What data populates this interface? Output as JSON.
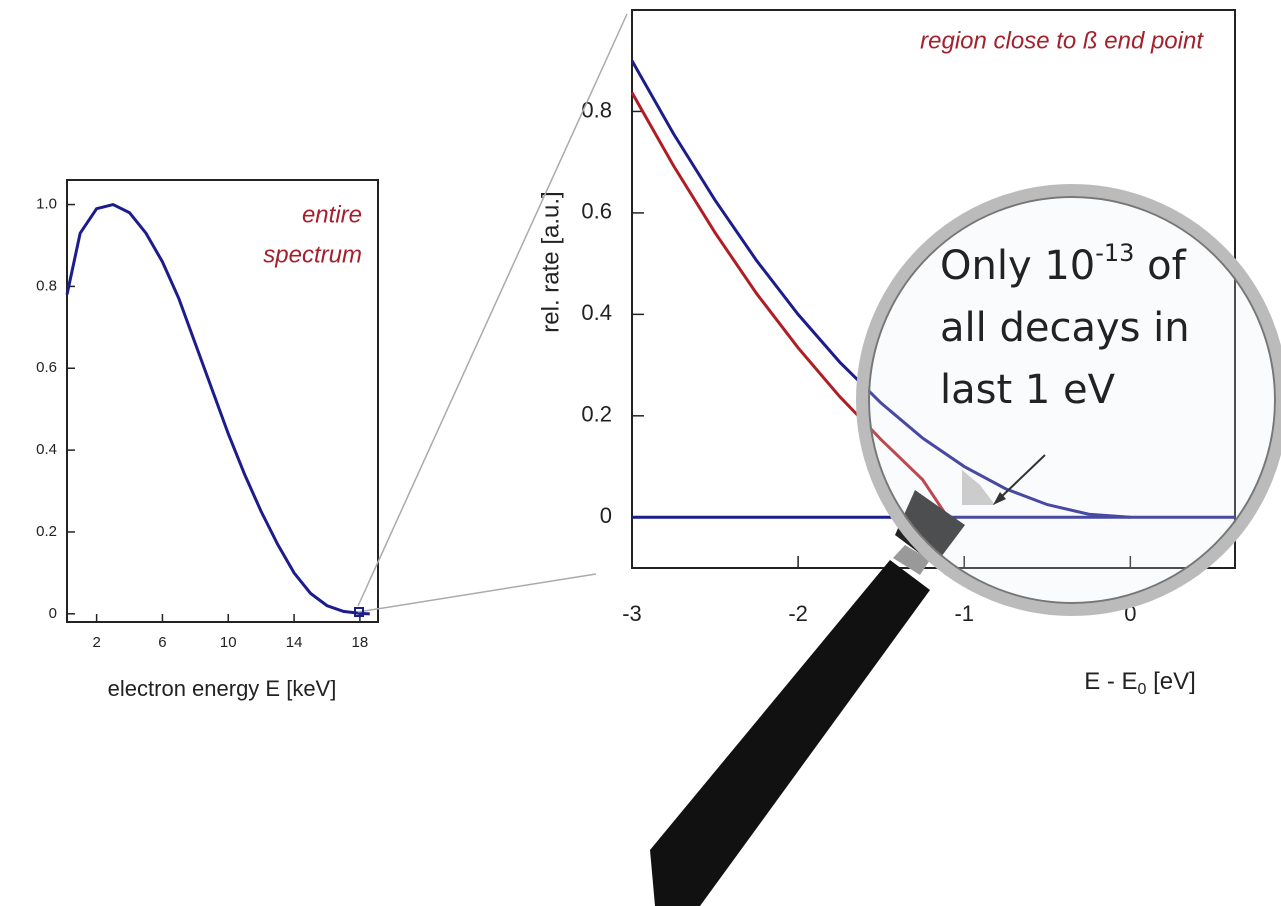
{
  "chart_data": [
    {
      "type": "line",
      "title_lines": [
        "entire",
        "spectrum"
      ],
      "xlabel": "electron energy E [keV]",
      "x": [
        0.2,
        1,
        2,
        3,
        4,
        5,
        6,
        7,
        8,
        9,
        10,
        11,
        12,
        13,
        14,
        15,
        16,
        17,
        18,
        18.6
      ],
      "series": [
        {
          "color": "#1c1c8c",
          "values": [
            0.78,
            0.93,
            0.99,
            1.0,
            0.98,
            0.93,
            0.86,
            0.77,
            0.66,
            0.55,
            0.44,
            0.34,
            0.25,
            0.17,
            0.1,
            0.05,
            0.02,
            0.006,
            0.001,
            0
          ]
        }
      ],
      "xlim": [
        0.2,
        19.1
      ],
      "ylim": [
        -0.02,
        1.06
      ],
      "xticks": [
        2,
        6,
        10,
        14,
        18
      ],
      "yticks": [
        0,
        0.2,
        0.4,
        0.6,
        0.8,
        {
          "value": 1,
          "label": "1.0"
        }
      ]
    },
    {
      "type": "line",
      "title": "region close to ß end point",
      "ylabel": "rel. rate [a.u.]",
      "xlabel": "E - E",
      "xlabel_subscript": "0",
      "xlabel_suffix": " [eV]",
      "zero_line": true,
      "zero_line_color": "#1c1c8c",
      "series": [
        {
          "color": "#1c1c8c",
          "x": [
            -3,
            -2.75,
            -2.5,
            -2.25,
            -2,
            -1.75,
            -1.5,
            -1.25,
            -1,
            -0.75,
            -0.5,
            -0.25,
            0
          ],
          "values": [
            0.9,
            0.756,
            0.625,
            0.506,
            0.4,
            0.306,
            0.225,
            0.156,
            0.1,
            0.056,
            0.025,
            0.006,
            0
          ]
        },
        {
          "color": "#b01e24",
          "x": [
            -3,
            -2.75,
            -2.5,
            -2.25,
            -2,
            -1.75,
            -1.5,
            -1.25,
            -1.1
          ],
          "values": [
            0.837,
            0.693,
            0.561,
            0.441,
            0.334,
            0.238,
            0.153,
            0.074,
            0
          ]
        }
      ],
      "xlim": [
        -3,
        0.63
      ],
      "ylim": [
        -0.1,
        1.0
      ],
      "xticks": [
        -3,
        -2,
        -1,
        0
      ],
      "yticks": [
        0,
        0.2,
        0.4,
        0.6,
        0.8
      ]
    }
  ],
  "annotation": {
    "first_line": "Only 10",
    "superscript": "-13",
    "first_line_end": " of",
    "lines": [
      "all decays in",
      "last 1 eV"
    ]
  }
}
